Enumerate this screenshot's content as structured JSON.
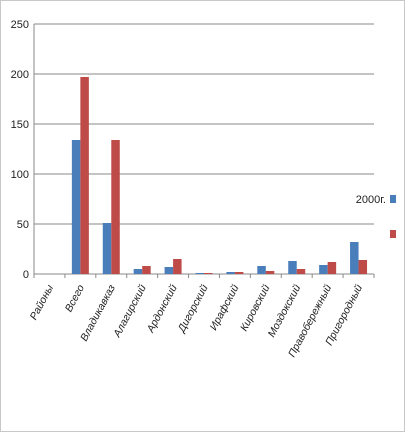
{
  "chart_data": {
    "type": "bar",
    "title": "",
    "xlabel": "",
    "ylabel": "",
    "ylim": [
      0,
      250
    ],
    "yticks": [
      0,
      50,
      100,
      150,
      200,
      250
    ],
    "grid": true,
    "legend_position": "right",
    "categories": [
      "Районы",
      "Всего",
      "Владикавказ",
      "Алагирский",
      "Ардонский",
      "Дигорский",
      "Ирафский",
      "Кировский",
      "Моздокский",
      "Правобережный",
      "Пригородный"
    ],
    "series": [
      {
        "name": "2000г.",
        "color": "#4a7ebb",
        "values": [
          0,
          134,
          51,
          5,
          7,
          1,
          2,
          8,
          13,
          9,
          32
        ]
      },
      {
        "name": "",
        "color": "#be4b48",
        "values": [
          0,
          197,
          134,
          8,
          15,
          1,
          2,
          3,
          5,
          12,
          14
        ]
      }
    ]
  }
}
